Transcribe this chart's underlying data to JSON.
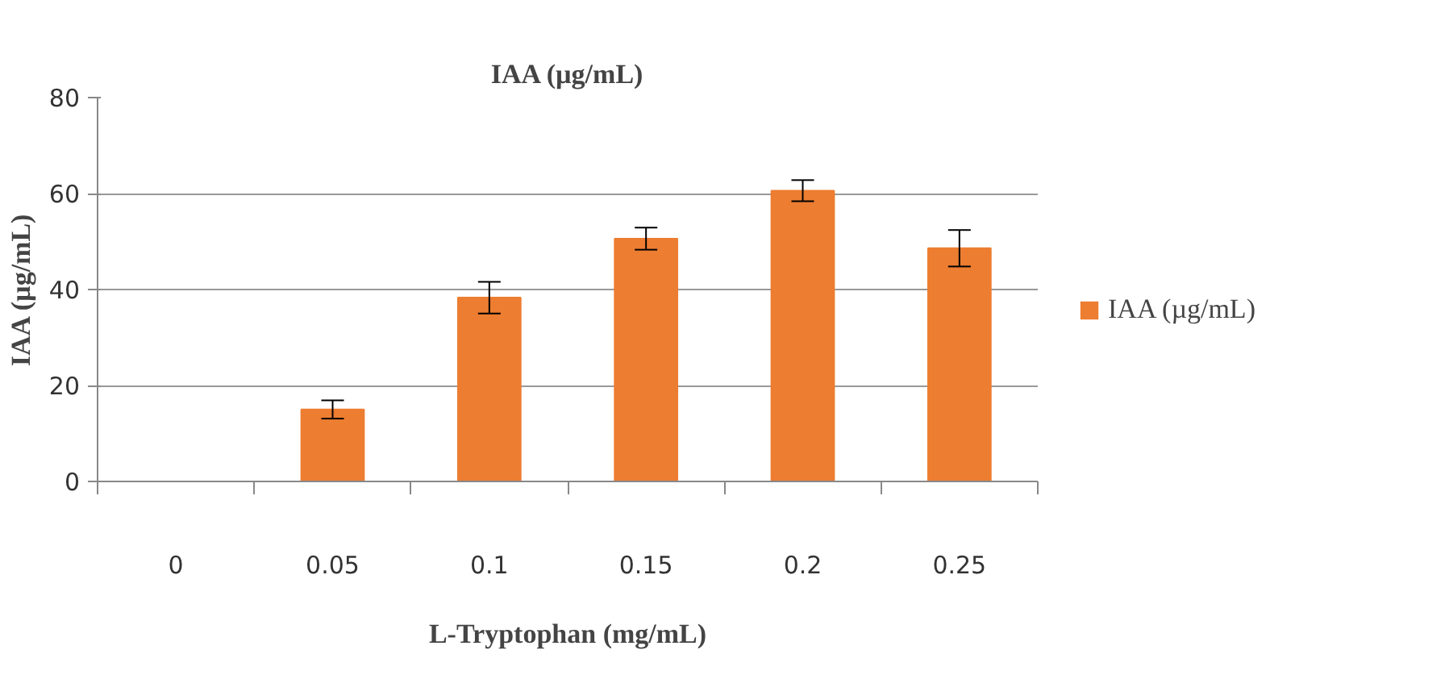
{
  "chart_data": {
    "type": "bar",
    "title": "IAA (µg/mL)",
    "xlabel": "L-Tryptophan (mg/mL)",
    "ylabel": "IAA (µg/mL)",
    "categories": [
      "0",
      "0.05",
      "0.1",
      "0.15",
      "0.2",
      "0.25"
    ],
    "series": [
      {
        "name": "IAA (µg/mL)",
        "color": "#ed7d31",
        "values": [
          0,
          15,
          38.3,
          50.6,
          60.6,
          48.6
        ],
        "errors": [
          null,
          1.9,
          3.3,
          2.3,
          2.2,
          3.8
        ]
      }
    ],
    "ylim": [
      0,
      80
    ],
    "yticks": [
      0,
      20,
      40,
      60,
      80
    ],
    "grid": "y",
    "legend": "right"
  }
}
